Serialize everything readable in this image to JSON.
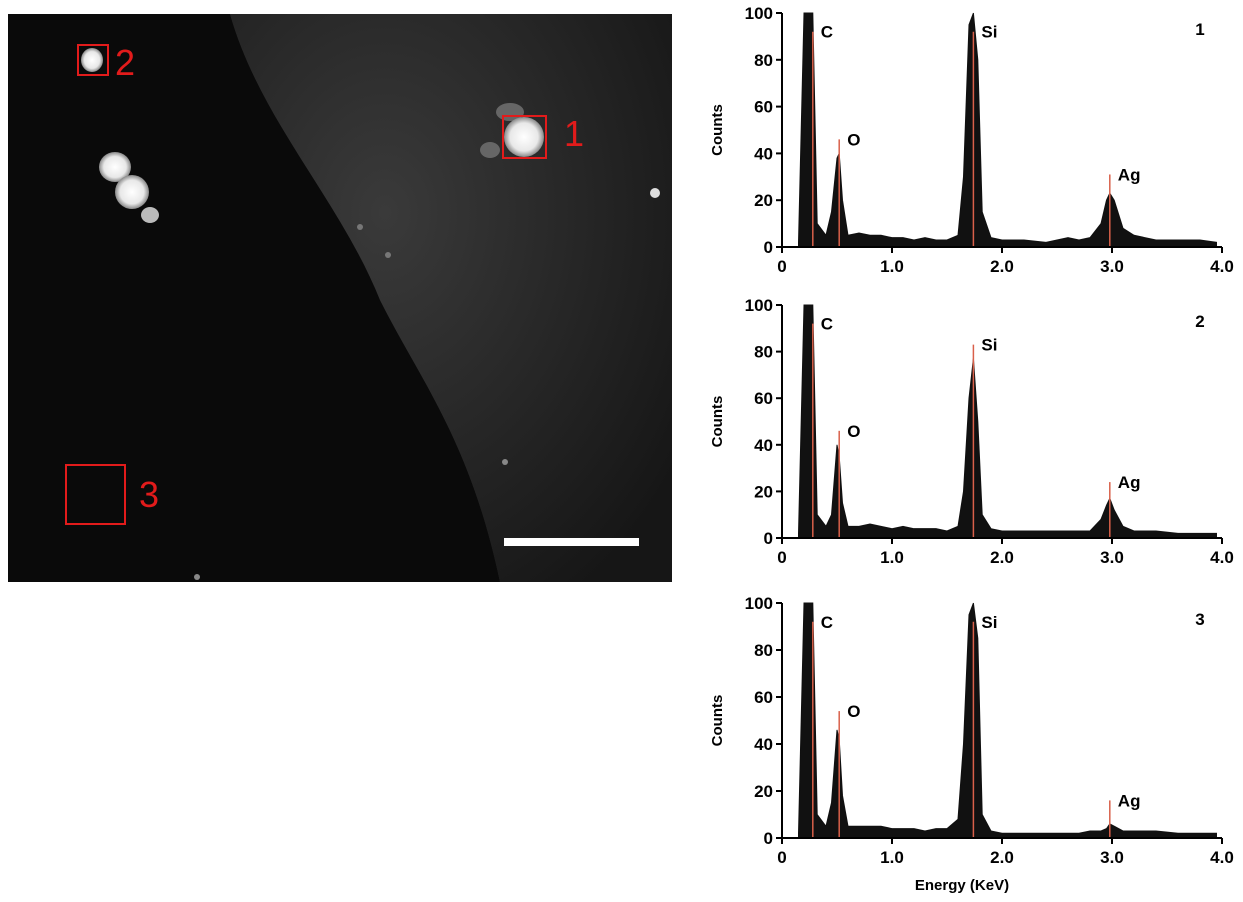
{
  "image": {
    "regions": [
      {
        "label": "1"
      },
      {
        "label": "2"
      },
      {
        "label": "3"
      }
    ]
  },
  "chart_data": [
    {
      "type": "line",
      "panel_label": "1",
      "y_label": "Counts",
      "x": [
        0.15,
        0.2,
        0.25,
        0.28,
        0.32,
        0.4,
        0.45,
        0.5,
        0.52,
        0.55,
        0.6,
        0.7,
        0.8,
        0.9,
        1.0,
        1.1,
        1.2,
        1.3,
        1.4,
        1.5,
        1.6,
        1.65,
        1.7,
        1.74,
        1.78,
        1.82,
        1.9,
        2.0,
        2.2,
        2.4,
        2.6,
        2.7,
        2.8,
        2.9,
        2.95,
        2.98,
        3.02,
        3.1,
        3.2,
        3.4,
        3.6,
        3.8,
        3.95
      ],
      "series": [
        {
          "color": "#111111",
          "values": [
            2,
            100,
            100,
            100,
            10,
            5,
            15,
            38,
            40,
            20,
            5,
            6,
            5,
            5,
            4,
            4,
            3,
            4,
            3,
            3,
            5,
            30,
            95,
            100,
            80,
            15,
            4,
            3,
            3,
            2,
            4,
            3,
            4,
            10,
            20,
            23,
            20,
            8,
            5,
            3,
            3,
            3,
            2
          ]
        }
      ],
      "markers": [
        {
          "label": "C",
          "x": 0.28,
          "y": 92
        },
        {
          "label": "O",
          "x": 0.52,
          "y": 46
        },
        {
          "label": "Si",
          "x": 1.74,
          "y": 92
        },
        {
          "label": "Ag",
          "x": 2.98,
          "y": 31
        }
      ],
      "marker_color": "#d9604a",
      "xlim": [
        0,
        4
      ],
      "xticks": [
        0,
        {
          "value": 1,
          "label": "1.0"
        },
        {
          "value": 2,
          "label": "2.0"
        },
        {
          "value": 3,
          "label": "3.0"
        },
        {
          "value": 4,
          "label": "4.0"
        }
      ],
      "ylim": [
        0,
        100
      ],
      "yticks": [
        0,
        20,
        40,
        60,
        80,
        100
      ]
    },
    {
      "type": "line",
      "panel_label": "2",
      "y_label": "Counts",
      "x": [
        0.15,
        0.2,
        0.25,
        0.28,
        0.32,
        0.4,
        0.45,
        0.5,
        0.52,
        0.55,
        0.6,
        0.7,
        0.8,
        0.9,
        1.0,
        1.1,
        1.2,
        1.3,
        1.4,
        1.5,
        1.6,
        1.65,
        1.7,
        1.74,
        1.78,
        1.82,
        1.9,
        2.0,
        2.2,
        2.4,
        2.6,
        2.7,
        2.8,
        2.9,
        2.95,
        2.98,
        3.02,
        3.1,
        3.2,
        3.4,
        3.6,
        3.8,
        3.95
      ],
      "series": [
        {
          "color": "#111111",
          "values": [
            2,
            100,
            100,
            100,
            10,
            5,
            10,
            40,
            35,
            15,
            5,
            5,
            6,
            5,
            4,
            5,
            4,
            4,
            4,
            3,
            5,
            20,
            60,
            77,
            50,
            10,
            4,
            3,
            3,
            3,
            3,
            3,
            3,
            8,
            14,
            17,
            12,
            5,
            3,
            3,
            2,
            2,
            2
          ]
        }
      ],
      "markers": [
        {
          "label": "C",
          "x": 0.28,
          "y": 92
        },
        {
          "label": "O",
          "x": 0.52,
          "y": 46
        },
        {
          "label": "Si",
          "x": 1.74,
          "y": 83
        },
        {
          "label": "Ag",
          "x": 2.98,
          "y": 24
        }
      ],
      "marker_color": "#d9604a",
      "xlim": [
        0,
        4
      ],
      "xticks": [
        0,
        {
          "value": 1,
          "label": "1.0"
        },
        {
          "value": 2,
          "label": "2.0"
        },
        {
          "value": 3,
          "label": "3.0"
        },
        {
          "value": 4,
          "label": "4.0"
        }
      ],
      "ylim": [
        0,
        100
      ],
      "yticks": [
        0,
        20,
        40,
        60,
        80,
        100
      ]
    },
    {
      "type": "line",
      "panel_label": "3",
      "y_label": "Counts",
      "x_label": "Energy (KeV)",
      "x": [
        0.15,
        0.2,
        0.25,
        0.28,
        0.32,
        0.4,
        0.45,
        0.5,
        0.52,
        0.55,
        0.6,
        0.7,
        0.8,
        0.9,
        1.0,
        1.1,
        1.2,
        1.3,
        1.4,
        1.5,
        1.6,
        1.65,
        1.7,
        1.74,
        1.78,
        1.82,
        1.9,
        2.0,
        2.2,
        2.4,
        2.6,
        2.7,
        2.8,
        2.9,
        2.95,
        2.98,
        3.02,
        3.1,
        3.2,
        3.4,
        3.6,
        3.8,
        3.95
      ],
      "series": [
        {
          "color": "#111111",
          "values": [
            2,
            100,
            100,
            100,
            10,
            5,
            15,
            46,
            42,
            18,
            5,
            5,
            5,
            5,
            4,
            4,
            4,
            3,
            4,
            4,
            8,
            40,
            95,
            100,
            85,
            10,
            3,
            2,
            2,
            2,
            2,
            2,
            3,
            3,
            4,
            6,
            5,
            3,
            3,
            3,
            2,
            2,
            2
          ]
        }
      ],
      "markers": [
        {
          "label": "C",
          "x": 0.28,
          "y": 92
        },
        {
          "label": "O",
          "x": 0.52,
          "y": 54
        },
        {
          "label": "Si",
          "x": 1.74,
          "y": 92
        },
        {
          "label": "Ag",
          "x": 2.98,
          "y": 16
        }
      ],
      "marker_color": "#d9604a",
      "xlim": [
        0,
        4
      ],
      "xticks": [
        0,
        {
          "value": 1,
          "label": "1.0"
        },
        {
          "value": 2,
          "label": "2.0"
        },
        {
          "value": 3,
          "label": "3.0"
        },
        {
          "value": 4,
          "label": "4.0"
        }
      ],
      "ylim": [
        0,
        100
      ],
      "yticks": [
        0,
        20,
        40,
        60,
        80,
        100
      ]
    }
  ]
}
